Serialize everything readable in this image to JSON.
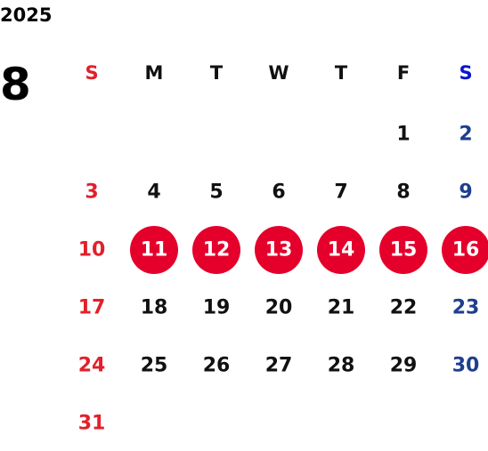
{
  "calendar": {
    "year": "2025",
    "month": "8",
    "weekdays": [
      "S",
      "M",
      "T",
      "W",
      "T",
      "F",
      "S"
    ],
    "weeks": [
      [
        null,
        null,
        null,
        null,
        null,
        1,
        2
      ],
      [
        3,
        4,
        5,
        6,
        7,
        8,
        9
      ],
      [
        10,
        {
          "day": 11,
          "marked": true
        },
        {
          "day": 12,
          "marked": true
        },
        {
          "day": 13,
          "marked": true
        },
        {
          "day": 14,
          "marked": true
        },
        {
          "day": 15,
          "marked": true
        },
        {
          "day": 16,
          "marked": true
        }
      ],
      [
        17,
        18,
        19,
        20,
        21,
        22,
        23
      ],
      [
        24,
        25,
        26,
        27,
        28,
        29,
        30
      ],
      [
        31,
        null,
        null,
        null,
        null,
        null,
        null
      ]
    ],
    "colors": {
      "sunday": "#e2202a",
      "saturday_header": "#0a14d0",
      "saturday": "#1f3f8e",
      "weekday": "#111111",
      "mark": "#e4002b",
      "mark_text": "#ffffff"
    }
  }
}
